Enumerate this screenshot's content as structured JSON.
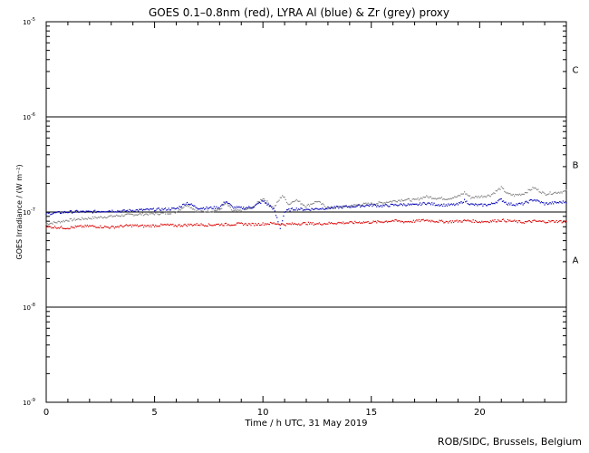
{
  "chart_data": {
    "type": "scatter",
    "title": "GOES 0.1–0.8nm (red), LYRA Al (blue) & Zr (grey) proxy",
    "xlabel": "Time / h UTC, 31 May 2019",
    "ylabel": "GOES Irradiance / (W m⁻²)",
    "xlim": [
      0,
      24
    ],
    "ylim": [
      1e-09,
      1e-05
    ],
    "yscale": "log",
    "x_ticks": [
      0,
      5,
      10,
      15,
      20
    ],
    "x_tick_labels": [
      "0",
      "5",
      "10",
      "15",
      "20"
    ],
    "y_ticks": [
      {
        "mantissa": "10",
        "exponent": "-9"
      },
      {
        "mantissa": "10",
        "exponent": "-8"
      },
      {
        "mantissa": "10",
        "exponent": "-7"
      },
      {
        "mantissa": "10",
        "exponent": "-6"
      },
      {
        "mantissa": "10",
        "exponent": "-5"
      }
    ],
    "flare_class_lines": [
      1e-08,
      1e-07,
      1e-06
    ],
    "flare_class_labels": [
      {
        "label": "A",
        "y": 3.16e-08
      },
      {
        "label": "B",
        "y": 3.16e-07
      },
      {
        "label": "C",
        "y": 3.16e-06
      }
    ],
    "series": [
      {
        "color": "#808080",
        "x": [
          0,
          0.5,
          1,
          1.5,
          2,
          2.5,
          3,
          3.5,
          4,
          4.5,
          5,
          5.5,
          6,
          6.5,
          7,
          7.5,
          8,
          8.3,
          8.6,
          9,
          9.5,
          10,
          10.5,
          10.9,
          11.2,
          11.5,
          12,
          12.5,
          13,
          13.5,
          14,
          14.5,
          15,
          15.5,
          16,
          16.5,
          17,
          17.5,
          18,
          18.5,
          19,
          19.3,
          19.6,
          20,
          20.5,
          21,
          21.3,
          21.6,
          22,
          22.5,
          23,
          23.5,
          24
        ],
        "values": [
          7.5e-08,
          7.8e-08,
          8.2e-08,
          8.4e-08,
          8.6e-08,
          8.8e-08,
          9e-08,
          9.2e-08,
          9.4e-08,
          9.5e-08,
          9.6e-08,
          9.7e-08,
          1e-07,
          1.2e-07,
          1e-07,
          1.02e-07,
          1.05e-07,
          1.25e-07,
          1.02e-07,
          1.03e-07,
          1.1e-07,
          1.4e-07,
          1.1e-07,
          1.5e-07,
          1.2e-07,
          1.35e-07,
          1.15e-07,
          1.3e-07,
          1.1e-07,
          1.12e-07,
          1.15e-07,
          1.2e-07,
          1.22e-07,
          1.25e-07,
          1.3e-07,
          1.35e-07,
          1.33e-07,
          1.45e-07,
          1.4e-07,
          1.38e-07,
          1.45e-07,
          1.6e-07,
          1.42e-07,
          1.45e-07,
          1.5e-07,
          1.8e-07,
          1.55e-07,
          1.5e-07,
          1.55e-07,
          1.8e-07,
          1.55e-07,
          1.6e-07,
          1.65e-07
        ]
      },
      {
        "color": "#0000b4",
        "x": [
          0,
          0.5,
          1,
          1.5,
          2,
          2.5,
          3,
          3.5,
          4,
          4.5,
          5,
          5.5,
          6,
          6.5,
          7,
          7.5,
          8,
          8.3,
          8.6,
          9,
          9.5,
          10,
          10.5,
          10.8,
          11.0,
          11.2,
          11.5,
          12,
          12.5,
          13,
          13.5,
          14,
          14.5,
          15,
          15.5,
          16,
          16.5,
          17,
          17.5,
          18,
          18.5,
          19,
          19.3,
          19.6,
          20,
          20.5,
          21,
          21.3,
          21.6,
          22,
          22.5,
          23,
          23.5,
          24
        ],
        "values": [
          9.6e-08,
          9.8e-08,
          1e-07,
          1.01e-07,
          1e-07,
          1.02e-07,
          1.03e-07,
          1.02e-07,
          1.04e-07,
          1.05e-07,
          1.06e-07,
          1.07e-07,
          1.08e-07,
          1.25e-07,
          1.1e-07,
          1.1e-07,
          1.12e-07,
          1.3e-07,
          1.12e-07,
          1.1e-07,
          1.12e-07,
          1.3e-07,
          1.08e-07,
          6.8e-08,
          1e-07,
          1.05e-07,
          1.08e-07,
          1.06e-07,
          1.08e-07,
          1.1e-07,
          1.12e-07,
          1.14e-07,
          1.16e-07,
          1.18e-07,
          1.16e-07,
          1.18e-07,
          1.2e-07,
          1.18e-07,
          1.24e-07,
          1.2e-07,
          1.18e-07,
          1.2e-07,
          1.32e-07,
          1.2e-07,
          1.18e-07,
          1.2e-07,
          1.35e-07,
          1.22e-07,
          1.2e-07,
          1.22e-07,
          1.35e-07,
          1.22e-07,
          1.25e-07,
          1.28e-07
        ]
      },
      {
        "color": "#dc0000",
        "x": [
          0,
          0.5,
          1,
          1.5,
          2,
          2.5,
          3,
          3.5,
          4,
          4.5,
          5,
          5.5,
          6,
          6.5,
          7,
          7.5,
          8,
          8.5,
          9,
          9.5,
          10,
          10.5,
          11,
          11.5,
          12,
          12.5,
          13,
          13.5,
          14,
          14.5,
          15,
          15.5,
          16,
          16.5,
          17,
          17.5,
          18,
          18.5,
          19,
          19.5,
          20,
          20.5,
          21,
          21.5,
          22,
          22.5,
          23,
          23.5,
          24
        ],
        "values": [
          7e-08,
          6.9e-08,
          6.8e-08,
          7e-08,
          7.1e-08,
          7e-08,
          6.9e-08,
          7.1e-08,
          7.2e-08,
          7.1e-08,
          7.2e-08,
          7.3e-08,
          7.2e-08,
          7.3e-08,
          7.4e-08,
          7.3e-08,
          7.4e-08,
          7.4e-08,
          7.5e-08,
          7.4e-08,
          7.5e-08,
          7.6e-08,
          7.4e-08,
          7.5e-08,
          7.6e-08,
          7.5e-08,
          7.6e-08,
          7.7e-08,
          7.7e-08,
          7.8e-08,
          7.8e-08,
          7.9e-08,
          8.1e-08,
          7.9e-08,
          8e-08,
          8.2e-08,
          8e-08,
          7.9e-08,
          8e-08,
          8.1e-08,
          7.9e-08,
          8e-08,
          8.2e-08,
          8e-08,
          7.8e-08,
          8e-08,
          7.9e-08,
          8e-08,
          7.9e-08
        ]
      }
    ]
  },
  "footer": {
    "credit": "ROB/SIDC, Brussels, Belgium"
  }
}
